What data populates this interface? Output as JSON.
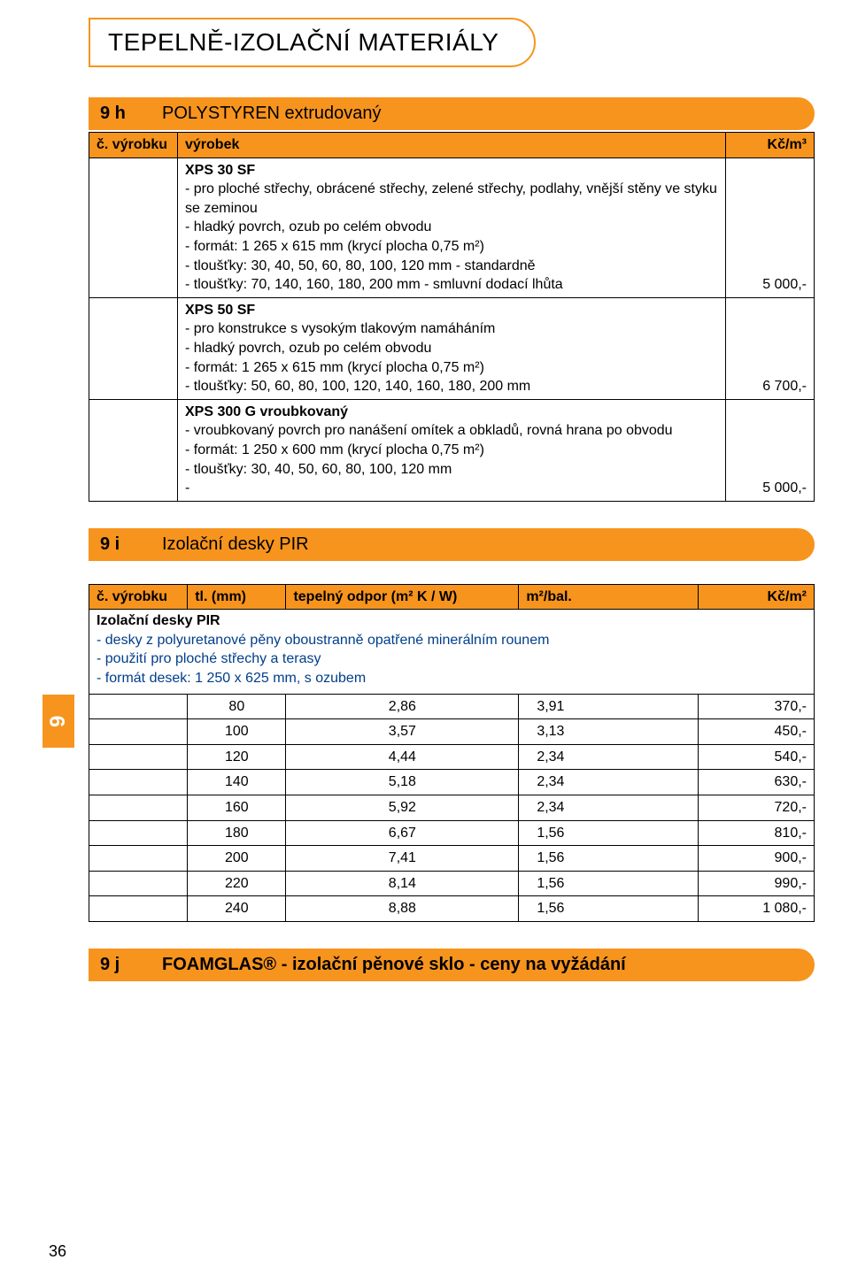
{
  "page_number": "36",
  "side_tab": "9",
  "title": "TEPELNĚ-IZOLAČNÍ MATERIÁLY",
  "section_9h": {
    "code": "9 h",
    "label": "POLYSTYREN extrudovaný"
  },
  "section_9i": {
    "code": "9 i",
    "label": "Izolační desky PIR"
  },
  "section_9j": {
    "code": "9 j",
    "label": "FOAMGLAS® - izolační pěnové sklo - ceny na vyžádání"
  },
  "t1": {
    "head_code": "č. výrobku",
    "head_prod": "výrobek",
    "head_price": "Kč/m³",
    "rows": [
      {
        "name": "XPS 30 SF",
        "lines": [
          "pro ploché střechy, obrácené střechy, zelené střechy, podlahy, vnější stěny ve styku se zeminou",
          "hladký povrch, ozub po celém obvodu",
          "formát: 1 265 x 615 mm (krycí plocha 0,75 m²)",
          "tloušťky: 30, 40, 50, 60, 80, 100, 120 mm - standardně",
          "tloušťky: 70, 140, 160, 180, 200 mm - smluvní dodací lhůta"
        ],
        "price": "5 000,-"
      },
      {
        "name": "XPS 50 SF",
        "lines": [
          "pro konstrukce s vysokým tlakovým namáháním",
          "hladký povrch, ozub po celém obvodu",
          "formát: 1 265 x 615 mm (krycí plocha 0,75 m²)",
          "tloušťky: 50, 60, 80, 100, 120, 140, 160, 180, 200 mm"
        ],
        "price": "6 700,-"
      },
      {
        "name": "XPS 300 G vroubkovaný",
        "lines": [
          "vroubkovaný povrch pro nanášení omítek a obkladů, rovná hrana po obvodu",
          "formát: 1 250 x 600 mm (krycí plocha 0,75 m²)",
          "tloušťky: 30, 40, 50, 60, 80, 100, 120 mm"
        ],
        "price": "5 000,-"
      }
    ]
  },
  "pir_intro": {
    "title": "Izolační desky PIR",
    "lines": [
      "desky z polyuretanové pěny oboustranně opatřené minerálním rounem",
      "použití pro ploché střechy a terasy",
      "formát desek: 1 250 x 625 mm, s ozubem"
    ]
  },
  "t2": {
    "head_code": "č. výrobku",
    "head_tl": "tl. (mm)",
    "head_res": "tepelný odpor (m² K / W)",
    "head_mbal": "m²/bal.",
    "head_price": "Kč/m²",
    "rows": [
      {
        "tl": "80",
        "res": "2,86",
        "mbal": "3,91",
        "price": "370,-"
      },
      {
        "tl": "100",
        "res": "3,57",
        "mbal": "3,13",
        "price": "450,-"
      },
      {
        "tl": "120",
        "res": "4,44",
        "mbal": "2,34",
        "price": "540,-"
      },
      {
        "tl": "140",
        "res": "5,18",
        "mbal": "2,34",
        "price": "630,-"
      },
      {
        "tl": "160",
        "res": "5,92",
        "mbal": "2,34",
        "price": "720,-"
      },
      {
        "tl": "180",
        "res": "6,67",
        "mbal": "1,56",
        "price": "810,-"
      },
      {
        "tl": "200",
        "res": "7,41",
        "mbal": "1,56",
        "price": "900,-"
      },
      {
        "tl": "220",
        "res": "8,14",
        "mbal": "1,56",
        "price": "990,-"
      },
      {
        "tl": "240",
        "res": "8,88",
        "mbal": "1,56",
        "price": "1 080,-"
      }
    ]
  },
  "colors": {
    "accent": "#f7941e",
    "blue_text": "#003e8a"
  }
}
